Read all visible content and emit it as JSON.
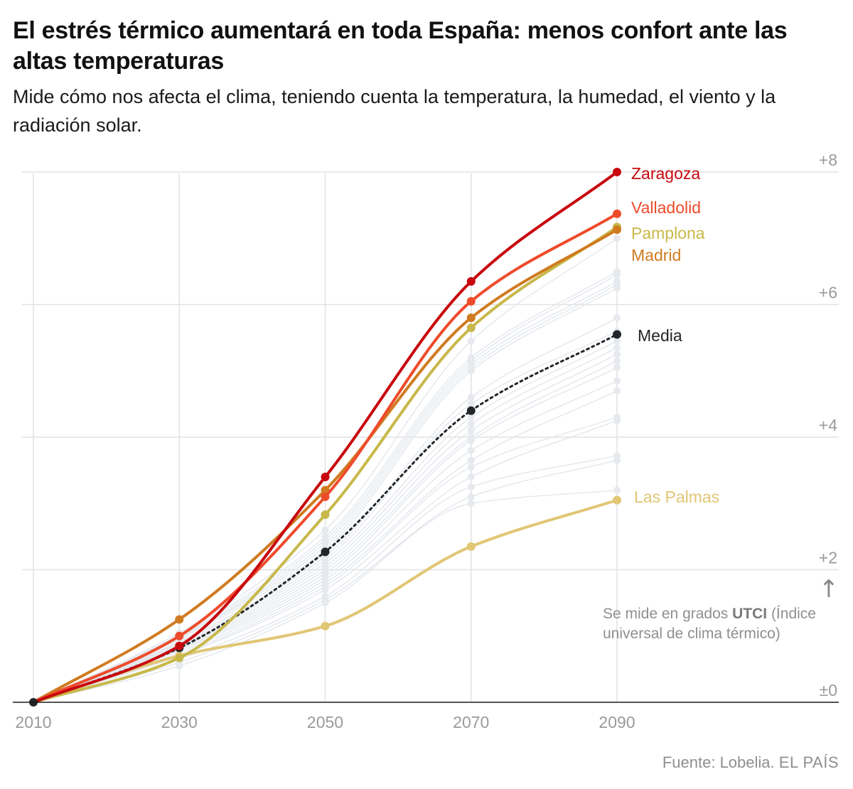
{
  "header": {
    "title": "El estrés térmico aumentará en toda España: menos confort ante las altas temperaturas",
    "subtitle": "Mide cómo nos afecta el clima, teniendo cuenta la temperatura, la humedad, el viento y la radiación solar."
  },
  "source": {
    "label": "Fuente: Lobelia",
    "separator": ".",
    "brand": "EL PAÍS"
  },
  "chart_data": {
    "type": "line",
    "x": [
      2010,
      2030,
      2050,
      2070,
      2090
    ],
    "xticks": [
      "2010",
      "2030",
      "2050",
      "2070",
      "2090"
    ],
    "yticks": [
      {
        "value": 0,
        "label": "±0"
      },
      {
        "value": 2,
        "label": "+2"
      },
      {
        "value": 4,
        "label": "+4"
      },
      {
        "value": 6,
        "label": "+6"
      },
      {
        "value": 8,
        "label": "+8"
      }
    ],
    "ylim": [
      0,
      8
    ],
    "xlim": [
      2010,
      2090
    ],
    "annotation": {
      "arrow": "↑",
      "prefix": "Se mide en grados ",
      "bold": "UTCI",
      "suffix": " (Índice",
      "line2": "universal de clima térmico)"
    },
    "series": [
      {
        "name": "Zaragoza",
        "color": "#c8070e",
        "values": [
          0,
          0.85,
          3.4,
          6.35,
          8.0
        ]
      },
      {
        "name": "Valladolid",
        "color": "#ee4b2b",
        "values": [
          0,
          1.0,
          3.1,
          6.05,
          7.37
        ]
      },
      {
        "name": "Pamplona",
        "color": "#c8b84a",
        "values": [
          0,
          0.67,
          2.83,
          5.65,
          7.17
        ]
      },
      {
        "name": "Madrid",
        "color": "#d07b20",
        "values": [
          0,
          1.25,
          3.2,
          5.8,
          7.13
        ]
      },
      {
        "name": "Media",
        "color": "#222629",
        "dashed": true,
        "values": [
          0,
          0.82,
          2.27,
          4.4,
          5.55
        ]
      },
      {
        "name": "Las Palmas",
        "color": "#e1c675",
        "values": [
          0,
          0.7,
          1.15,
          2.35,
          3.05
        ]
      }
    ],
    "background_series_color": "#e3e7ec",
    "background_series": [
      [
        0,
        0.55,
        1.5,
        3.0,
        3.2
      ],
      [
        0,
        0.6,
        1.55,
        3.1,
        3.65
      ],
      [
        0,
        0.65,
        1.6,
        3.25,
        3.72
      ],
      [
        0,
        0.7,
        1.7,
        3.4,
        4.25
      ],
      [
        0,
        0.72,
        1.75,
        3.55,
        4.3
      ],
      [
        0,
        0.75,
        1.8,
        3.65,
        4.7
      ],
      [
        0,
        0.78,
        1.85,
        3.8,
        4.85
      ],
      [
        0,
        0.8,
        1.9,
        3.95,
        5.05
      ],
      [
        0,
        0.82,
        1.95,
        4.0,
        5.15
      ],
      [
        0,
        0.84,
        2.0,
        4.1,
        5.25
      ],
      [
        0,
        0.86,
        2.05,
        4.2,
        5.35
      ],
      [
        0,
        0.88,
        2.1,
        4.3,
        5.45
      ],
      [
        0,
        0.9,
        2.15,
        4.5,
        5.6
      ],
      [
        0,
        0.92,
        2.2,
        4.6,
        5.8
      ],
      [
        0,
        0.95,
        2.3,
        5.0,
        6.25
      ],
      [
        0,
        0.97,
        2.35,
        5.05,
        6.3
      ],
      [
        0,
        0.98,
        2.4,
        5.1,
        6.35
      ],
      [
        0,
        1.0,
        2.45,
        5.15,
        6.45
      ],
      [
        0,
        1.02,
        2.5,
        5.2,
        6.5
      ],
      [
        0,
        1.05,
        2.6,
        5.45,
        7.0
      ]
    ]
  }
}
